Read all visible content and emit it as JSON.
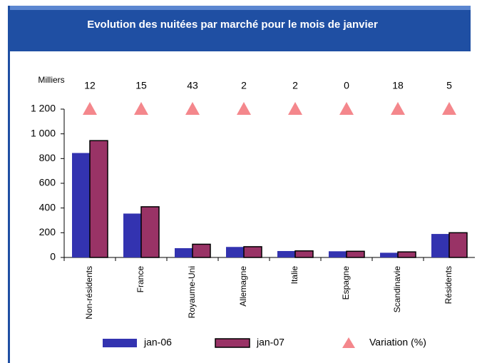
{
  "chart_data": {
    "type": "bar",
    "title": "Evolution des nuitées par marché pour le mois de  janvier",
    "y_unit": "Milliers",
    "categories": [
      "Non-résidents",
      "France",
      "Royaume-Uni",
      "Allemagne",
      "Italie",
      "Espagne",
      "Scandinavie",
      "Résidents"
    ],
    "series": [
      {
        "name": "jan-06",
        "color": "#3333b0",
        "values": [
          845,
          355,
          75,
          85,
          52,
          50,
          38,
          190
        ]
      },
      {
        "name": "jan-07",
        "color": "#993366",
        "values": [
          945,
          410,
          107,
          87,
          53,
          50,
          45,
          200
        ]
      }
    ],
    "variation": {
      "name": "Variation (%)",
      "color": "#f4878c",
      "values": [
        12,
        15,
        43,
        2,
        2,
        0,
        18,
        5
      ]
    },
    "ylim": [
      0,
      1200
    ],
    "yticks": [
      0,
      200,
      400,
      600,
      800,
      {
        "value": 1000,
        "label": "1 000"
      },
      {
        "value": 1200,
        "label": "1 200"
      }
    ]
  }
}
